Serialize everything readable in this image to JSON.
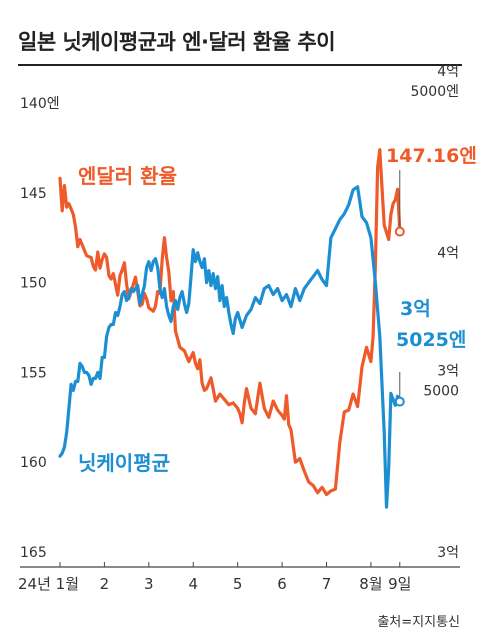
{
  "title": "일본 닛케이평균과 엔·달러 환율 추이",
  "source": "출처=지지통신",
  "colors": {
    "jpy": "#ee5a2a",
    "nikkei": "#1c8fd2",
    "text": "#333333",
    "axis": "#555555"
  },
  "chart_data": {
    "type": "line",
    "title": "일본 닛케이평균과 엔·달러 환율 추이",
    "x_ticks": [
      {
        "label": "24년 1월",
        "x": 0
      },
      {
        "label": "2",
        "x": 1
      },
      {
        "label": "3",
        "x": 2
      },
      {
        "label": "4",
        "x": 3
      },
      {
        "label": "5",
        "x": 4
      },
      {
        "label": "6",
        "x": 5
      },
      {
        "label": "7",
        "x": 6
      },
      {
        "label": "8월",
        "x": 7
      },
      {
        "label": "9일",
        "x": 7.65
      }
    ],
    "xlim": [
      0,
      7.7
    ],
    "left_axis": {
      "inverted": true,
      "ylim": [
        140,
        165
      ],
      "tick_labels": [
        {
          "value": 140,
          "label": "140엔"
        },
        {
          "value": 145,
          "label": "145"
        },
        {
          "value": 150,
          "label": "150"
        },
        {
          "value": 155,
          "label": "155"
        },
        {
          "value": 160,
          "label": "160"
        },
        {
          "value": 165,
          "label": "165"
        }
      ]
    },
    "right_axis": {
      "ylim": [
        30000,
        45000
      ],
      "tick_labels": [
        {
          "value": 45000,
          "lines": [
            "4억",
            "5000엔"
          ]
        },
        {
          "value": 40000,
          "lines": [
            "4억"
          ]
        },
        {
          "value": 35000,
          "lines": [
            "3억",
            "5000"
          ]
        },
        {
          "value": 30000,
          "lines": [
            "3억"
          ]
        }
      ]
    },
    "series": [
      {
        "name": "엔달러 환율",
        "axis": "left",
        "end_label": "147.16엔",
        "x": [
          0,
          0.05,
          0.1,
          0.15,
          0.2,
          0.3,
          0.35,
          0.4,
          0.45,
          0.5,
          0.6,
          0.7,
          0.75,
          0.8,
          0.85,
          0.9,
          0.95,
          1.0,
          1.05,
          1.1,
          1.15,
          1.2,
          1.3,
          1.35,
          1.4,
          1.45,
          1.5,
          1.55,
          1.6,
          1.7,
          1.8,
          1.85,
          1.9,
          1.95,
          2.0,
          2.1,
          2.15,
          2.2,
          2.25,
          2.3,
          2.35,
          2.4,
          2.45,
          2.5,
          2.55,
          2.6,
          2.7,
          2.8,
          2.9,
          3.0,
          3.05,
          3.1,
          3.15,
          3.2,
          3.25,
          3.3,
          3.4,
          3.5,
          3.6,
          3.7,
          3.8,
          3.9,
          4.0,
          4.05,
          4.1,
          4.15,
          4.2,
          4.3,
          4.4,
          4.5,
          4.6,
          4.7,
          4.8,
          4.9,
          5.0,
          5.05,
          5.1,
          5.15,
          5.2,
          5.3,
          5.4,
          5.5,
          5.6,
          5.7,
          5.8,
          5.9,
          6.0,
          6.1,
          6.2,
          6.3,
          6.4,
          6.5,
          6.6,
          6.7,
          6.8,
          6.9,
          7.0,
          7.05,
          7.1,
          7.15,
          7.2,
          7.3,
          7.4,
          7.45,
          7.5,
          7.55,
          7.6,
          7.65
        ],
        "values": [
          144.2,
          146.0,
          144.6,
          145.8,
          145.6,
          146.2,
          146.9,
          148.0,
          147.6,
          147.9,
          148.5,
          148.6,
          149.1,
          149.3,
          148.3,
          149.2,
          148.7,
          148.4,
          148.6,
          149.6,
          149.8,
          149.5,
          150.7,
          149.6,
          149.3,
          148.9,
          150.1,
          150.9,
          150.5,
          149.7,
          151.3,
          151.2,
          150.6,
          150.9,
          151.4,
          151.6,
          151.3,
          150.5,
          150.6,
          148.7,
          147.5,
          148.6,
          149.4,
          151.0,
          150.5,
          152.7,
          153.6,
          153.8,
          154.4,
          153.9,
          154.5,
          154.8,
          154.3,
          155.6,
          156.0,
          155.9,
          155.3,
          156.6,
          156.2,
          156.5,
          156.8,
          156.7,
          157.0,
          157.3,
          157.8,
          156.7,
          155.9,
          157.0,
          157.3,
          155.6,
          157.0,
          157.5,
          156.6,
          157.1,
          157.4,
          157.6,
          156.3,
          157.9,
          158.2,
          160.0,
          159.8,
          160.5,
          161.1,
          161.3,
          161.7,
          161.4,
          161.8,
          161.6,
          161.5,
          158.9,
          157.2,
          157.1,
          156.2,
          156.9,
          154.7,
          153.6,
          154.4,
          153.0,
          149.0,
          143.6,
          142.6,
          146.8,
          147.6,
          146.2,
          145.6,
          145.4,
          144.8,
          147.16
        ]
      },
      {
        "name": "닛케이평균",
        "axis": "right",
        "end_label": "3억 5025엔",
        "x": [
          0,
          0.05,
          0.1,
          0.15,
          0.2,
          0.25,
          0.3,
          0.35,
          0.4,
          0.45,
          0.5,
          0.55,
          0.6,
          0.65,
          0.7,
          0.75,
          0.8,
          0.85,
          0.9,
          0.95,
          1.0,
          1.05,
          1.1,
          1.15,
          1.2,
          1.25,
          1.3,
          1.35,
          1.4,
          1.45,
          1.5,
          1.55,
          1.6,
          1.65,
          1.7,
          1.75,
          1.8,
          1.85,
          1.9,
          1.95,
          2.0,
          2.05,
          2.1,
          2.15,
          2.2,
          2.25,
          2.3,
          2.35,
          2.4,
          2.45,
          2.5,
          2.55,
          2.6,
          2.65,
          2.7,
          2.75,
          2.8,
          2.85,
          2.9,
          2.95,
          3.0,
          3.05,
          3.1,
          3.15,
          3.2,
          3.25,
          3.3,
          3.35,
          3.4,
          3.45,
          3.5,
          3.55,
          3.6,
          3.65,
          3.7,
          3.75,
          3.8,
          3.85,
          3.9,
          3.95,
          4.0,
          4.1,
          4.2,
          4.3,
          4.4,
          4.5,
          4.6,
          4.7,
          4.8,
          4.9,
          5.0,
          5.1,
          5.2,
          5.3,
          5.4,
          5.5,
          5.6,
          5.7,
          5.8,
          5.9,
          6.0,
          6.1,
          6.2,
          6.3,
          6.4,
          6.5,
          6.6,
          6.7,
          6.8,
          6.9,
          7.0,
          7.1,
          7.2,
          7.3,
          7.35,
          7.4,
          7.45,
          7.5,
          7.55,
          7.6,
          7.65
        ],
        "values": [
          33200,
          33300,
          33500,
          34000,
          34800,
          35600,
          35400,
          35700,
          35700,
          36300,
          36200,
          36000,
          36000,
          35900,
          35600,
          35800,
          35800,
          36000,
          35800,
          36500,
          36500,
          37200,
          37500,
          37600,
          37600,
          38000,
          37900,
          38200,
          38600,
          38700,
          38400,
          38500,
          38800,
          38700,
          38800,
          38900,
          38300,
          38600,
          38900,
          39500,
          39700,
          39400,
          39700,
          39800,
          39500,
          38800,
          38500,
          38800,
          38200,
          37900,
          37700,
          38200,
          38400,
          38100,
          38500,
          38700,
          38300,
          38000,
          38300,
          39200,
          40100,
          39700,
          40000,
          39700,
          39500,
          39800,
          39000,
          39400,
          38900,
          39300,
          38800,
          39200,
          38400,
          38900,
          38200,
          38500,
          38000,
          37600,
          37300,
          37800,
          38000,
          37500,
          37900,
          38100,
          38500,
          38300,
          38800,
          38900,
          38600,
          38800,
          38400,
          38600,
          38200,
          38800,
          38400,
          38800,
          39000,
          39200,
          39400,
          39100,
          38900,
          40500,
          40800,
          41100,
          41300,
          41600,
          42100,
          42200,
          41200,
          41000,
          40500,
          39000,
          37200,
          34000,
          31500,
          32800,
          35300,
          35100,
          34900,
          35200,
          35025
        ]
      }
    ]
  }
}
